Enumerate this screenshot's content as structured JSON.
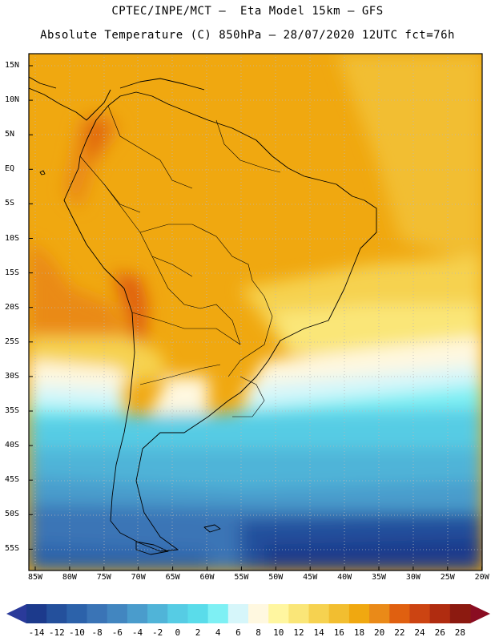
{
  "header": {
    "line1": "CPTEC/INPE/MCT –  Eta Model 15km – GFS",
    "line2": "Absolute Temperature (C) 850hPa – 28/07/2020 12UTC fct=76h"
  },
  "map": {
    "lat_labels": [
      "15N",
      "10N",
      "5N",
      "EQ",
      "5S",
      "10S",
      "15S",
      "20S",
      "25S",
      "30S",
      "35S",
      "40S",
      "45S",
      "50S",
      "55S"
    ],
    "lon_labels": [
      "85W",
      "80W",
      "75W",
      "70W",
      "65W",
      "60W",
      "55W",
      "50W",
      "45W",
      "40W",
      "35W",
      "30W",
      "25W",
      "20W"
    ]
  },
  "colorbar": {
    "labels": [
      "-14",
      "-12",
      "-10",
      "-8",
      "-6",
      "-4",
      "-2",
      "0",
      "2",
      "4",
      "6",
      "8",
      "10",
      "12",
      "14",
      "16",
      "18",
      "20",
      "22",
      "24",
      "26",
      "28"
    ],
    "colors": [
      "#1c3a8c",
      "#24509c",
      "#2c62aa",
      "#3a74b6",
      "#4286c0",
      "#4a9ccc",
      "#50b4d8",
      "#56cce4",
      "#5adcea",
      "#7ef0f4",
      "#d6f6fa",
      "#fff8e0",
      "#fff6a0",
      "#fae678",
      "#f6d250",
      "#f2be30",
      "#f0a810",
      "#ea8a18",
      "#e06010",
      "#cc4412",
      "#b02c10",
      "#8c1a10"
    ],
    "under_color": "#2a3a9a",
    "over_color": "#8a0d22"
  }
}
